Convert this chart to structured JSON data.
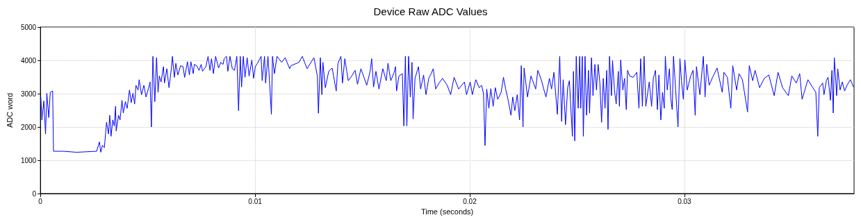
{
  "chart_data": {
    "type": "line",
    "title": "Device Raw ADC Values",
    "xlabel": "Time (seconds)",
    "ylabel": "ADC word",
    "x": [
      2e-05,
      7e-05,
      0.00016,
      0.00024,
      0.0003,
      0.00039,
      0.00046,
      0.00057,
      0.00061,
      0.00107,
      0.00169,
      0.00262,
      0.00275,
      0.00281,
      0.00289,
      0.00298,
      0.00308,
      0.00317,
      0.00323,
      0.00329,
      0.00337,
      0.00344,
      0.0035,
      0.00353,
      0.00364,
      0.00371,
      0.0038,
      0.00386,
      0.00396,
      0.00404,
      0.00415,
      0.00423,
      0.00431,
      0.00439,
      0.00445,
      0.00455,
      0.0046,
      0.00471,
      0.00482,
      0.00492,
      0.00503,
      0.00511,
      0.00517,
      0.00524,
      0.00533,
      0.00541,
      0.00548,
      0.00554,
      0.00562,
      0.00573,
      0.00578,
      0.00589,
      0.00599,
      0.0061,
      0.00615,
      0.00624,
      0.00631,
      0.0064,
      0.00653,
      0.00664,
      0.00672,
      0.00685,
      0.00694,
      0.00701,
      0.00712,
      0.00717,
      0.00728,
      0.00739,
      0.00749,
      0.00755,
      0.00771,
      0.00781,
      0.0079,
      0.00797,
      0.00806,
      0.00816,
      0.0083,
      0.0084,
      0.00851,
      0.00856,
      0.00867,
      0.00873,
      0.00883,
      0.00894,
      0.00904,
      0.00915,
      0.00923,
      0.00931,
      0.00937,
      0.00945,
      0.00953,
      0.00963,
      0.00972,
      0.00985,
      0.00993,
      0.01001,
      0.01011,
      0.01028,
      0.01033,
      0.01044,
      0.01049,
      0.0106,
      0.01067,
      0.01076,
      0.01081,
      0.0109,
      0.01102,
      0.01124,
      0.0114,
      0.01161,
      0.01167,
      0.01204,
      0.0122,
      0.01242,
      0.01274,
      0.0129,
      0.01295,
      0.01304,
      0.01311,
      0.01316,
      0.01327,
      0.01343,
      0.01359,
      0.01378,
      0.01386,
      0.014,
      0.01407,
      0.01418,
      0.01434,
      0.0145,
      0.01466,
      0.01477,
      0.01493,
      0.0152,
      0.01536,
      0.01543,
      0.01552,
      0.01563,
      0.01577,
      0.01595,
      0.01611,
      0.01619,
      0.01632,
      0.01648,
      0.01654,
      0.01659,
      0.0167,
      0.01686,
      0.01693,
      0.017,
      0.01707,
      0.01715,
      0.01723,
      0.01731,
      0.01736,
      0.01745,
      0.01761,
      0.01771,
      0.01785,
      0.01796,
      0.01809,
      0.0182,
      0.0183,
      0.01841,
      0.01857,
      0.01873,
      0.01895,
      0.01911,
      0.01927,
      0.01948,
      0.01975,
      0.01985,
      0.02002,
      0.02012,
      0.02028,
      0.02044,
      0.02055,
      0.02064,
      0.02071,
      0.02079,
      0.02089,
      0.02098,
      0.02109,
      0.02119,
      0.0213,
      0.02146,
      0.02157,
      0.02167,
      0.02178,
      0.02192,
      0.022,
      0.0221,
      0.02221,
      0.02232,
      0.0224,
      0.02248,
      0.02253,
      0.02269,
      0.02285,
      0.02307,
      0.02317,
      0.02333,
      0.02344,
      0.02355,
      0.02371,
      0.02381,
      0.02392,
      0.02408,
      0.02419,
      0.02428,
      0.02435,
      0.02446,
      0.02456,
      0.02464,
      0.02478,
      0.02483,
      0.02489,
      0.02496,
      0.02505,
      0.02512,
      0.02517,
      0.02524,
      0.02529,
      0.02537,
      0.02544,
      0.02553,
      0.02558,
      0.02567,
      0.02574,
      0.02583,
      0.0259,
      0.02598,
      0.02606,
      0.02614,
      0.02622,
      0.0263,
      0.02638,
      0.02644,
      0.02651,
      0.0266,
      0.02665,
      0.02674,
      0.02682,
      0.02692,
      0.02697,
      0.02703,
      0.02713,
      0.02721,
      0.02729,
      0.02735,
      0.02745,
      0.02761,
      0.02778,
      0.02788,
      0.02796,
      0.02804,
      0.02812,
      0.0282,
      0.02836,
      0.02847,
      0.02855,
      0.02865,
      0.02874,
      0.02881,
      0.0289,
      0.02898,
      0.02906,
      0.02911,
      0.0292,
      0.0293,
      0.02936,
      0.02943,
      0.02949,
      0.02959,
      0.0297,
      0.02979,
      0.02986,
      0.02995,
      0.03002,
      0.03013,
      0.03029,
      0.0304,
      0.0305,
      0.03056,
      0.03072,
      0.03088,
      0.03096,
      0.03104,
      0.03115,
      0.03131,
      0.03152,
      0.03176,
      0.03184,
      0.032,
      0.03216,
      0.03225,
      0.03243,
      0.03254,
      0.0327,
      0.03294,
      0.03302,
      0.03318,
      0.03329,
      0.0335,
      0.03372,
      0.03393,
      0.03418,
      0.03436,
      0.03457,
      0.03484,
      0.035,
      0.03521,
      0.03537,
      0.03548,
      0.03575,
      0.03596,
      0.03612,
      0.03621,
      0.03628,
      0.03644,
      0.0365,
      0.03661,
      0.03669,
      0.0368,
      0.03687,
      0.03693,
      0.03698,
      0.03709,
      0.03714,
      0.03725,
      0.03735,
      0.03746,
      0.03757,
      0.03773,
      0.03787
    ],
    "values": [
      2900,
      2210,
      2780,
      1790,
      3010,
      2280,
      3040,
      3080,
      1270,
      1270,
      1240,
      1270,
      1550,
      1240,
      1450,
      1380,
      2140,
      1790,
      2350,
      1720,
      2210,
      2030,
      2620,
      1880,
      2350,
      2210,
      2800,
      2420,
      2760,
      2560,
      3110,
      2730,
      3010,
      2690,
      3250,
      3110,
      3420,
      2970,
      3250,
      2900,
      3150,
      3350,
      2000,
      4120,
      2760,
      4080,
      3040,
      3530,
      3350,
      3810,
      3320,
      3750,
      3180,
      3750,
      4120,
      3490,
      3910,
      3560,
      3840,
      3810,
      3490,
      3960,
      3560,
      3960,
      3600,
      3880,
      3840,
      3700,
      3880,
      3670,
      3810,
      4120,
      3700,
      4050,
      3600,
      4120,
      3770,
      3940,
      3880,
      4050,
      4120,
      3670,
      4120,
      3750,
      3700,
      4120,
      2490,
      4120,
      3200,
      4120,
      3490,
      4080,
      3530,
      4010,
      3460,
      3810,
      3910,
      4120,
      3390,
      4120,
      3320,
      4120,
      3390,
      2380,
      4120,
      3600,
      4120,
      3940,
      4080,
      3750,
      3840,
      3940,
      4120,
      3750,
      4080,
      3530,
      2410,
      4080,
      2970,
      3940,
      3180,
      3670,
      3770,
      3080,
      3910,
      4120,
      3320,
      4050,
      3390,
      3530,
      3700,
      3280,
      3750,
      3250,
      3670,
      4050,
      3200,
      3670,
      3140,
      3750,
      3390,
      3910,
      3390,
      3640,
      3810,
      3080,
      3530,
      3600,
      2030,
      4120,
      2030,
      4120,
      2900,
      3940,
      2240,
      3460,
      3810,
      3140,
      3560,
      2970,
      3460,
      3600,
      3750,
      3140,
      3320,
      3460,
      3250,
      2970,
      3490,
      3140,
      3350,
      2970,
      3350,
      2970,
      3420,
      3180,
      3250,
      3000,
      1440,
      3140,
      2560,
      3150,
      2620,
      3180,
      2830,
      3040,
      3490,
      3140,
      2830,
      2350,
      2900,
      2490,
      2970,
      2210,
      3840,
      2000,
      3770,
      2900,
      3530,
      3140,
      3700,
      3420,
      3150,
      2900,
      3460,
      3140,
      3640,
      2380,
      4120,
      2170,
      3420,
      2070,
      3180,
      3390,
      1720,
      3670,
      1580,
      4120,
      2560,
      4120,
      2560,
      4120,
      1720,
      4120,
      2350,
      3700,
      2420,
      4080,
      2940,
      3880,
      3110,
      3880,
      3320,
      2140,
      3460,
      2560,
      3700,
      1930,
      4120,
      2940,
      3990,
      3110,
      2690,
      3670,
      2620,
      4010,
      3110,
      3460,
      2520,
      3700,
      3530,
      3490,
      3640,
      2560,
      4050,
      2620,
      4120,
      2620,
      3350,
      2620,
      3460,
      3700,
      2520,
      3560,
      2210,
      3040,
      2560,
      4120,
      3110,
      3750,
      2870,
      2520,
      4120,
      3110,
      2000,
      4050,
      3390,
      2830,
      4010,
      3110,
      3530,
      3700,
      2350,
      3810,
      2970,
      4120,
      2900,
      3880,
      3250,
      3490,
      3770,
      3040,
      3640,
      3490,
      2560,
      3840,
      3110,
      3600,
      3420,
      2450,
      3840,
      3390,
      3700,
      3180,
      3460,
      3560,
      2940,
      3640,
      3180,
      2940,
      3530,
      3320,
      3600,
      2830,
      3420,
      3200,
      3040,
      1720,
      3180,
      3320,
      2970,
      3390,
      3490,
      2800,
      3700,
      2420,
      4080,
      2940,
      3750,
      3110,
      3350,
      3080,
      3250,
      3420,
      3200
    ],
    "color": "#0000ff",
    "marker": "none",
    "line_style": "solid",
    "xlim": [
      0,
      0.0379
    ],
    "xticks": [
      0,
      0.01,
      0.02,
      0.03
    ],
    "ylim": [
      0,
      5000
    ],
    "yticks": [
      0,
      1000,
      2000,
      3000,
      4000,
      5000
    ],
    "grid": true
  }
}
